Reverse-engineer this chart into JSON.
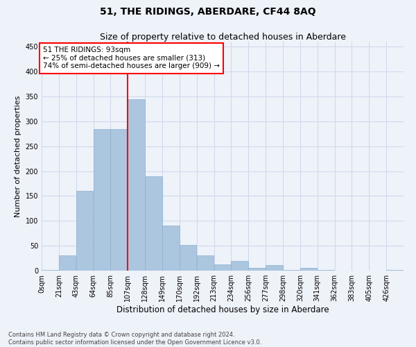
{
  "title": "51, THE RIDINGS, ABERDARE, CF44 8AQ",
  "subtitle": "Size of property relative to detached houses in Aberdare",
  "xlabel": "Distribution of detached houses by size in Aberdare",
  "ylabel": "Number of detached properties",
  "footer_line1": "Contains HM Land Registry data © Crown copyright and database right 2024.",
  "footer_line2": "Contains public sector information licensed under the Open Government Licence v3.0.",
  "bar_labels": [
    "0sqm",
    "21sqm",
    "43sqm",
    "64sqm",
    "85sqm",
    "107sqm",
    "128sqm",
    "149sqm",
    "170sqm",
    "192sqm",
    "213sqm",
    "234sqm",
    "256sqm",
    "277sqm",
    "298sqm",
    "320sqm",
    "341sqm",
    "362sqm",
    "383sqm",
    "405sqm",
    "426sqm"
  ],
  "bar_values": [
    2,
    30,
    160,
    285,
    285,
    345,
    190,
    91,
    51,
    30,
    13,
    19,
    5,
    11,
    1,
    5,
    1,
    0,
    0,
    0,
    2
  ],
  "bar_color": "#adc6e0",
  "bar_edgecolor": "#8ab0d0",
  "vline_x_index": 4,
  "vline_color": "red",
  "annotation_text": "51 THE RIDINGS: 93sqm\n← 25% of detached houses are smaller (313)\n74% of semi-detached houses are larger (909) →",
  "annotation_box_color": "white",
  "annotation_box_edgecolor": "red",
  "ylim": [
    0,
    460
  ],
  "yticks": [
    0,
    50,
    100,
    150,
    200,
    250,
    300,
    350,
    400,
    450
  ],
  "grid_color": "#ccd8ea",
  "background_color": "#eef2f9",
  "title_fontsize": 10,
  "subtitle_fontsize": 9,
  "tick_fontsize": 7,
  "ylabel_fontsize": 8,
  "xlabel_fontsize": 8.5,
  "annotation_fontsize": 7.5,
  "footer_fontsize": 6,
  "bin_width": 21.33
}
